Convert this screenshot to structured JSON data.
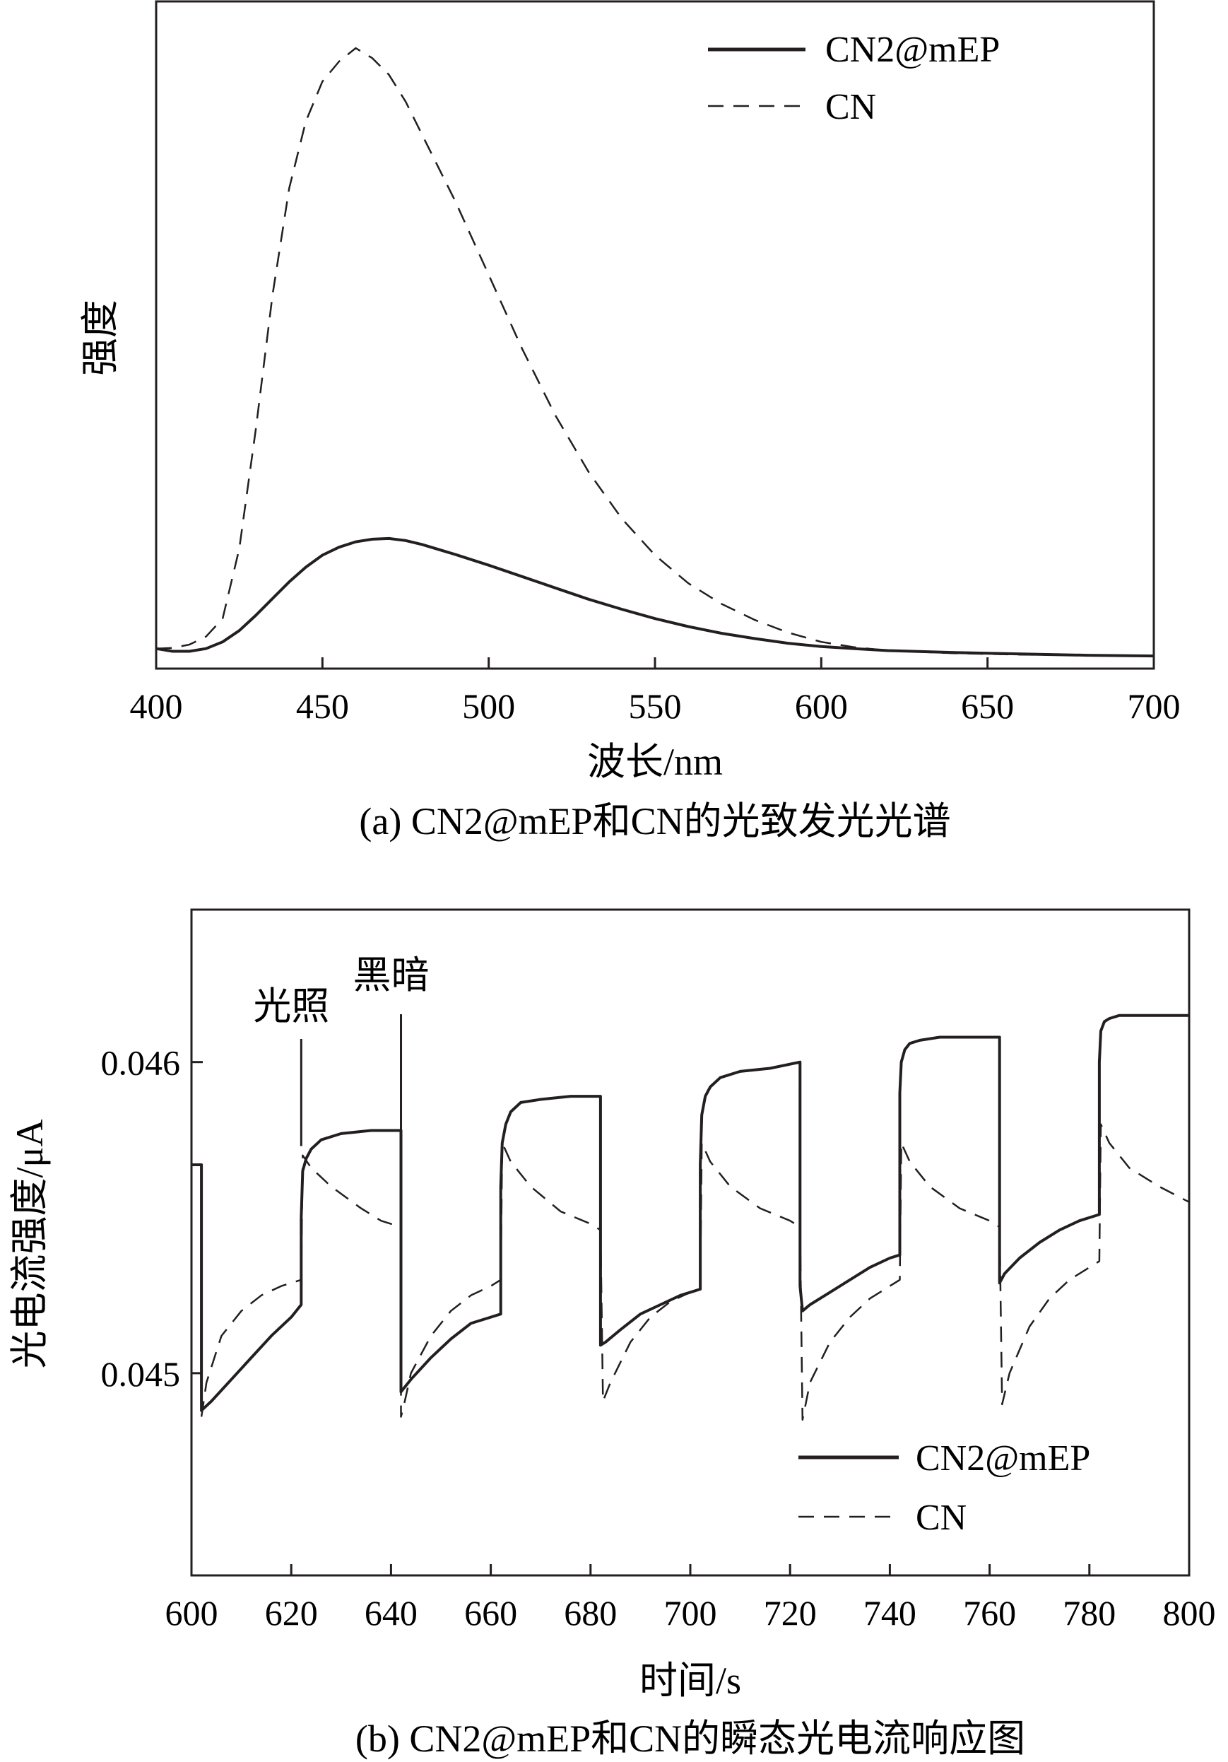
{
  "chart_data": [
    {
      "type": "line",
      "caption": "(a) CN2@mEP和CN的光致发光光谱",
      "xlabel": "波长/nm",
      "ylabel": "强度",
      "xlim": [
        400,
        700
      ],
      "ylim": [
        0,
        1
      ],
      "y_ticks_labeled": false,
      "x_ticks": [
        400,
        450,
        500,
        550,
        600,
        650,
        700
      ],
      "grid": false,
      "legend_position": "top-right",
      "series": [
        {
          "name": "CN2@mEP",
          "line_style": "solid",
          "x": [
            400,
            405,
            410,
            415,
            420,
            425,
            430,
            435,
            440,
            445,
            450,
            455,
            460,
            465,
            470,
            475,
            480,
            490,
            500,
            510,
            520,
            530,
            540,
            550,
            560,
            570,
            580,
            590,
            600,
            610,
            620,
            640,
            660,
            680,
            700
          ],
          "y": [
            0.03,
            0.026,
            0.026,
            0.03,
            0.04,
            0.057,
            0.08,
            0.105,
            0.13,
            0.152,
            0.17,
            0.182,
            0.19,
            0.194,
            0.195,
            0.192,
            0.186,
            0.171,
            0.155,
            0.138,
            0.121,
            0.104,
            0.089,
            0.075,
            0.063,
            0.053,
            0.045,
            0.038,
            0.033,
            0.03,
            0.027,
            0.024,
            0.022,
            0.02,
            0.019
          ]
        },
        {
          "name": "CN",
          "line_style": "dashed",
          "x": [
            400,
            405,
            410,
            415,
            420,
            425,
            430,
            435,
            440,
            445,
            450,
            455,
            460,
            465,
            470,
            475,
            480,
            490,
            500,
            510,
            520,
            530,
            540,
            550,
            560,
            570,
            580,
            590,
            600,
            610,
            620,
            640,
            660,
            680,
            700
          ],
          "y": [
            0.03,
            0.031,
            0.036,
            0.048,
            0.075,
            0.18,
            0.36,
            0.56,
            0.72,
            0.82,
            0.88,
            0.91,
            0.93,
            0.915,
            0.89,
            0.85,
            0.8,
            0.7,
            0.59,
            0.48,
            0.38,
            0.295,
            0.225,
            0.17,
            0.128,
            0.097,
            0.073,
            0.054,
            0.04,
            0.032,
            0.027,
            0.023,
            0.021,
            0.02,
            0.019
          ]
        }
      ]
    },
    {
      "type": "line",
      "caption": "(b) CN2@mEP和CN的瞬态光电流响应图",
      "xlabel": "时间/s",
      "ylabel": "光电流强度/μA",
      "xlim": [
        600,
        800
      ],
      "ylim": [
        0.04435,
        0.04649
      ],
      "x_ticks": [
        600,
        620,
        640,
        660,
        680,
        700,
        720,
        740,
        760,
        780,
        800
      ],
      "y_ticks": [
        0.045,
        0.046
      ],
      "y_tick_labels": [
        "0.045",
        "0.046"
      ],
      "grid": false,
      "legend_position": "bottom-right",
      "annotations": [
        {
          "text": "光照",
          "x": 622
        },
        {
          "text": "黑暗",
          "x": 642
        }
      ],
      "series": [
        {
          "name": "CN2@mEP",
          "line_style": "solid",
          "x": [
            600,
            602,
            602,
            604,
            608,
            612,
            616,
            620,
            622,
            622,
            622.3,
            623,
            624,
            626,
            630,
            636,
            642,
            642,
            644,
            648,
            652,
            656,
            660,
            662,
            662,
            662.3,
            663,
            664,
            666,
            670,
            676,
            682,
            682,
            683,
            686,
            690,
            694,
            698,
            702,
            702,
            702.3,
            703,
            704,
            706,
            710,
            716,
            722,
            722,
            722.5,
            724,
            728,
            732,
            736,
            740,
            742,
            742,
            742.3,
            743,
            744,
            746,
            750,
            756,
            762,
            762,
            763,
            766,
            770,
            774,
            778,
            782,
            782,
            782.3,
            783,
            784,
            786,
            790,
            796,
            800
          ],
          "y": [
            0.04567,
            0.04567,
            0.04488,
            0.04491,
            0.04498,
            0.04505,
            0.04512,
            0.04518,
            0.04522,
            0.0455,
            0.04565,
            0.04569,
            0.04572,
            0.04575,
            0.04577,
            0.04578,
            0.04578,
            0.04494,
            0.04498,
            0.04505,
            0.04511,
            0.04516,
            0.04518,
            0.04519,
            0.0456,
            0.04574,
            0.0458,
            0.04584,
            0.04587,
            0.04588,
            0.04589,
            0.04589,
            0.04509,
            0.0451,
            0.04514,
            0.04519,
            0.04522,
            0.04525,
            0.04527,
            0.04567,
            0.04583,
            0.04589,
            0.04592,
            0.04595,
            0.04597,
            0.04598,
            0.046,
            0.04528,
            0.0452,
            0.04522,
            0.04526,
            0.0453,
            0.04534,
            0.04537,
            0.04538,
            0.0459,
            0.046,
            0.04604,
            0.04606,
            0.04607,
            0.04608,
            0.04608,
            0.04608,
            0.04529,
            0.04532,
            0.04537,
            0.04542,
            0.04546,
            0.04549,
            0.04551,
            0.046,
            0.0461,
            0.04613,
            0.04614,
            0.04615,
            0.04615,
            0.04615,
            0.04615
          ]
        },
        {
          "name": "CN",
          "line_style": "dashed",
          "x": [
            602,
            603,
            606,
            610,
            614,
            618,
            622,
            622.3,
            624,
            628,
            634,
            638,
            642,
            642,
            642.5,
            644,
            648,
            652,
            656,
            660,
            662,
            662.3,
            664,
            668,
            674,
            680,
            682,
            682.5,
            684,
            688,
            692,
            696,
            700,
            702,
            702.3,
            704,
            708,
            714,
            720,
            722,
            722.5,
            724,
            728,
            732,
            736,
            740,
            742,
            742.3,
            744,
            748,
            754,
            760,
            762,
            762.5,
            764,
            768,
            772,
            776,
            780,
            782,
            782.3,
            784,
            788,
            794,
            800
          ],
          "y": [
            0.04486,
            0.04497,
            0.04512,
            0.0452,
            0.04525,
            0.04528,
            0.0453,
            0.0457,
            0.04566,
            0.0456,
            0.04553,
            0.04549,
            0.04547,
            0.04486,
            0.04489,
            0.045,
            0.04512,
            0.0452,
            0.04525,
            0.04528,
            0.0453,
            0.04574,
            0.04568,
            0.0456,
            0.04552,
            0.04548,
            0.04546,
            0.04491,
            0.04497,
            0.0451,
            0.04518,
            0.04523,
            0.04526,
            0.04528,
            0.04574,
            0.04568,
            0.0456,
            0.04553,
            0.04549,
            0.04547,
            0.04485,
            0.04497,
            0.0451,
            0.04518,
            0.04524,
            0.04528,
            0.0453,
            0.04574,
            0.04568,
            0.0456,
            0.04553,
            0.04549,
            0.04547,
            0.0449,
            0.045,
            0.04515,
            0.04524,
            0.0453,
            0.04534,
            0.04536,
            0.0458,
            0.04574,
            0.04566,
            0.0456,
            0.04555
          ]
        }
      ]
    }
  ],
  "colors": {
    "ink": "#231f20",
    "background": "#ffffff"
  }
}
